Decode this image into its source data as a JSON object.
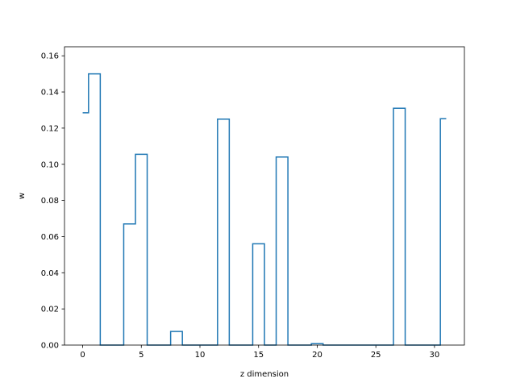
{
  "chart_data": {
    "type": "line",
    "drawstyle": "steps-mid",
    "xlabel": "z dimension",
    "ylabel": "w",
    "xlim": [
      -1.55,
      32.55
    ],
    "ylim": [
      0,
      0.165
    ],
    "xticks": [
      0,
      5,
      10,
      15,
      20,
      25,
      30
    ],
    "yticks": [
      0.0,
      0.02,
      0.04,
      0.06,
      0.08,
      0.1,
      0.12,
      0.14,
      0.16
    ],
    "ytick_labels": [
      "0.00",
      "0.02",
      "0.04",
      "0.06",
      "0.08",
      "0.10",
      "0.12",
      "0.14",
      "0.16"
    ],
    "grid": false,
    "series_color": "#1f77b4",
    "x": [
      0,
      1,
      2,
      3,
      4,
      5,
      6,
      7,
      8,
      9,
      10,
      11,
      12,
      13,
      14,
      15,
      16,
      17,
      18,
      19,
      20,
      21,
      22,
      23,
      24,
      25,
      26,
      27,
      28,
      29,
      30,
      31
    ],
    "y": [
      0.1285,
      0.15,
      0.0,
      0.0,
      0.067,
      0.1055,
      0.0,
      0.0,
      0.0075,
      0.0,
      0.0,
      0.0,
      0.125,
      0.0,
      0.0,
      0.056,
      0.0,
      0.104,
      0.0,
      0.0,
      0.0008,
      0.0,
      0.0,
      0.0,
      0.0,
      0.0,
      0.0,
      0.131,
      0.0,
      0.0,
      0.0,
      0.1252
    ]
  }
}
